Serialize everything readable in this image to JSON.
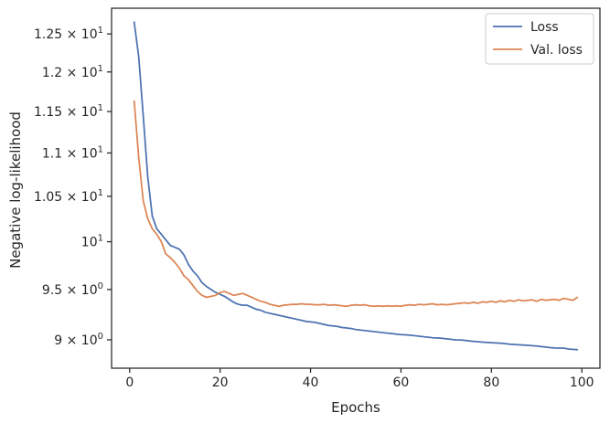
{
  "chart_data": {
    "type": "line",
    "xlabel": "Epochs",
    "ylabel": "Negative log-likelihood",
    "xlim": [
      -4,
      104
    ],
    "ylim": [
      8.73,
      12.85
    ],
    "yscale": "log",
    "grid": false,
    "legend_position": "top-right",
    "xticks": [
      0,
      20,
      40,
      60,
      80,
      100
    ],
    "yticks": [
      {
        "value": 12.5,
        "mantissa": "1.25",
        "exp": "1"
      },
      {
        "value": 12.0,
        "mantissa": "1.2",
        "exp": "1"
      },
      {
        "value": 11.5,
        "mantissa": "1.15",
        "exp": "1"
      },
      {
        "value": 11.0,
        "mantissa": "1.1",
        "exp": "1"
      },
      {
        "value": 10.5,
        "mantissa": "1.05",
        "exp": "1"
      },
      {
        "value": 10.0,
        "mantissa": "10",
        "exp": "1"
      },
      {
        "value": 9.5,
        "mantissa": "9.5",
        "exp": "0"
      },
      {
        "value": 9.0,
        "mantissa": "9",
        "exp": "0"
      }
    ],
    "series": [
      {
        "name": "Loss",
        "color": "#4c72b0",
        "x": [
          1,
          2,
          3,
          4,
          5,
          6,
          7,
          8,
          9,
          10,
          11,
          12,
          13,
          14,
          15,
          16,
          17,
          18,
          19,
          20,
          21,
          22,
          23,
          24,
          25,
          26,
          27,
          28,
          29,
          30,
          31,
          32,
          33,
          34,
          35,
          36,
          37,
          38,
          39,
          40,
          41,
          42,
          43,
          44,
          45,
          46,
          47,
          48,
          49,
          50,
          51,
          52,
          53,
          54,
          55,
          56,
          57,
          58,
          59,
          60,
          61,
          62,
          63,
          64,
          65,
          66,
          67,
          68,
          69,
          70,
          71,
          72,
          73,
          74,
          75,
          76,
          77,
          78,
          79,
          80,
          81,
          82,
          83,
          84,
          85,
          86,
          87,
          88,
          89,
          90,
          91,
          92,
          93,
          94,
          95,
          96,
          97,
          98,
          99
        ],
        "values": [
          12.66,
          12.2,
          11.45,
          10.72,
          10.28,
          10.14,
          10.08,
          10.02,
          9.96,
          9.94,
          9.92,
          9.86,
          9.76,
          9.69,
          9.64,
          9.57,
          9.53,
          9.5,
          9.47,
          9.45,
          9.43,
          9.4,
          9.37,
          9.35,
          9.34,
          9.34,
          9.32,
          9.3,
          9.29,
          9.27,
          9.26,
          9.25,
          9.24,
          9.23,
          9.22,
          9.21,
          9.2,
          9.19,
          9.18,
          9.175,
          9.17,
          9.16,
          9.15,
          9.14,
          9.135,
          9.13,
          9.12,
          9.115,
          9.11,
          9.1,
          9.095,
          9.09,
          9.085,
          9.08,
          9.075,
          9.07,
          9.065,
          9.06,
          9.055,
          9.05,
          9.048,
          9.045,
          9.04,
          9.035,
          9.03,
          9.025,
          9.02,
          9.018,
          9.015,
          9.01,
          9.005,
          9.0,
          8.998,
          8.995,
          8.99,
          8.985,
          8.982,
          8.978,
          8.975,
          8.972,
          8.97,
          8.968,
          8.963,
          8.958,
          8.955,
          8.952,
          8.95,
          8.947,
          8.943,
          8.94,
          8.935,
          8.93,
          8.925,
          8.922,
          8.92,
          8.92,
          8.912,
          8.908,
          8.905
        ]
      },
      {
        "name": "Val. loss",
        "color": "#dd8452",
        "x": [
          1,
          2,
          3,
          4,
          5,
          6,
          7,
          8,
          9,
          10,
          11,
          12,
          13,
          14,
          15,
          16,
          17,
          18,
          19,
          20,
          21,
          22,
          23,
          24,
          25,
          26,
          27,
          28,
          29,
          30,
          31,
          32,
          33,
          34,
          35,
          36,
          37,
          38,
          39,
          40,
          41,
          42,
          43,
          44,
          45,
          46,
          47,
          48,
          49,
          50,
          51,
          52,
          53,
          54,
          55,
          56,
          57,
          58,
          59,
          60,
          61,
          62,
          63,
          64,
          65,
          66,
          67,
          68,
          69,
          70,
          71,
          72,
          73,
          74,
          75,
          76,
          77,
          78,
          79,
          80,
          81,
          82,
          83,
          84,
          85,
          86,
          87,
          88,
          89,
          90,
          91,
          92,
          93,
          94,
          95,
          96,
          97,
          98,
          99
        ],
        "values": [
          11.63,
          10.95,
          10.45,
          10.25,
          10.14,
          10.08,
          10.0,
          9.87,
          9.83,
          9.78,
          9.72,
          9.64,
          9.6,
          9.54,
          9.48,
          9.44,
          9.42,
          9.43,
          9.44,
          9.47,
          9.48,
          9.46,
          9.44,
          9.45,
          9.46,
          9.44,
          9.42,
          9.4,
          9.38,
          9.37,
          9.35,
          9.34,
          9.33,
          9.34,
          9.345,
          9.35,
          9.35,
          9.355,
          9.35,
          9.35,
          9.345,
          9.345,
          9.35,
          9.34,
          9.345,
          9.34,
          9.335,
          9.33,
          9.34,
          9.345,
          9.34,
          9.345,
          9.335,
          9.33,
          9.335,
          9.33,
          9.335,
          9.33,
          9.335,
          9.33,
          9.34,
          9.345,
          9.34,
          9.35,
          9.345,
          9.35,
          9.355,
          9.345,
          9.35,
          9.345,
          9.35,
          9.355,
          9.36,
          9.365,
          9.36,
          9.37,
          9.36,
          9.375,
          9.37,
          9.38,
          9.37,
          9.385,
          9.375,
          9.39,
          9.38,
          9.395,
          9.385,
          9.39,
          9.395,
          9.38,
          9.4,
          9.39,
          9.395,
          9.4,
          9.39,
          9.41,
          9.4,
          9.39,
          9.42
        ]
      }
    ]
  }
}
